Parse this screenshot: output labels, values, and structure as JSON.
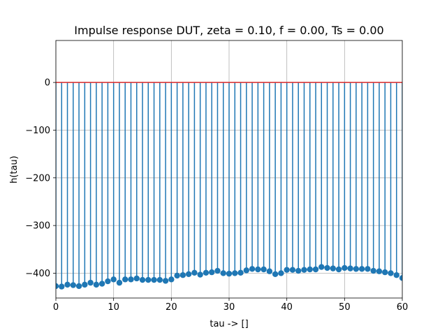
{
  "chart_data": {
    "type": "stem",
    "title": "Impulse response DUT, zeta = 0.10, f = 0.00, Ts = 0.00",
    "xlabel": "tau -> []",
    "ylabel": "h(tau)",
    "xlim": [
      0,
      60
    ],
    "ylim": [
      -452,
      88
    ],
    "xticks": [
      0,
      10,
      20,
      30,
      40,
      50,
      60
    ],
    "yticks": [
      0,
      -100,
      -200,
      -300,
      -400
    ],
    "xtick_labels": [
      "0",
      "10",
      "20",
      "30",
      "40",
      "50",
      "60"
    ],
    "ytick_labels": [
      "0",
      "−100",
      "−200",
      "−300",
      "−400"
    ],
    "grid": true,
    "baseline": 0,
    "colors": {
      "stem": "#1f77b4",
      "marker": "#1f77b4",
      "baseline": "#d62728",
      "grid": "#b0b0b0"
    },
    "x": [
      0,
      1,
      2,
      3,
      4,
      5,
      6,
      7,
      8,
      9,
      10,
      11,
      12,
      13,
      14,
      15,
      16,
      17,
      18,
      19,
      20,
      21,
      22,
      23,
      24,
      25,
      26,
      27,
      28,
      29,
      30,
      31,
      32,
      33,
      34,
      35,
      36,
      37,
      38,
      39,
      40,
      41,
      42,
      43,
      44,
      45,
      46,
      47,
      48,
      49,
      50,
      51,
      52,
      53,
      54,
      55,
      56,
      57,
      58,
      59,
      60
    ],
    "y": [
      -427,
      -428,
      -424,
      -425,
      -427,
      -424,
      -420,
      -424,
      -422,
      -417,
      -413,
      -420,
      -413,
      -413,
      -411,
      -414,
      -414,
      -414,
      -414,
      -416,
      -413,
      -405,
      -404,
      -402,
      -399,
      -403,
      -399,
      -398,
      -395,
      -400,
      -401,
      -400,
      -399,
      -394,
      -391,
      -392,
      -392,
      -396,
      -402,
      -400,
      -393,
      -393,
      -395,
      -393,
      -392,
      -392,
      -387,
      -389,
      -390,
      -392,
      -389,
      -390,
      -391,
      -391,
      -391,
      -395,
      -396,
      -398,
      -400,
      -404,
      -410
    ]
  }
}
